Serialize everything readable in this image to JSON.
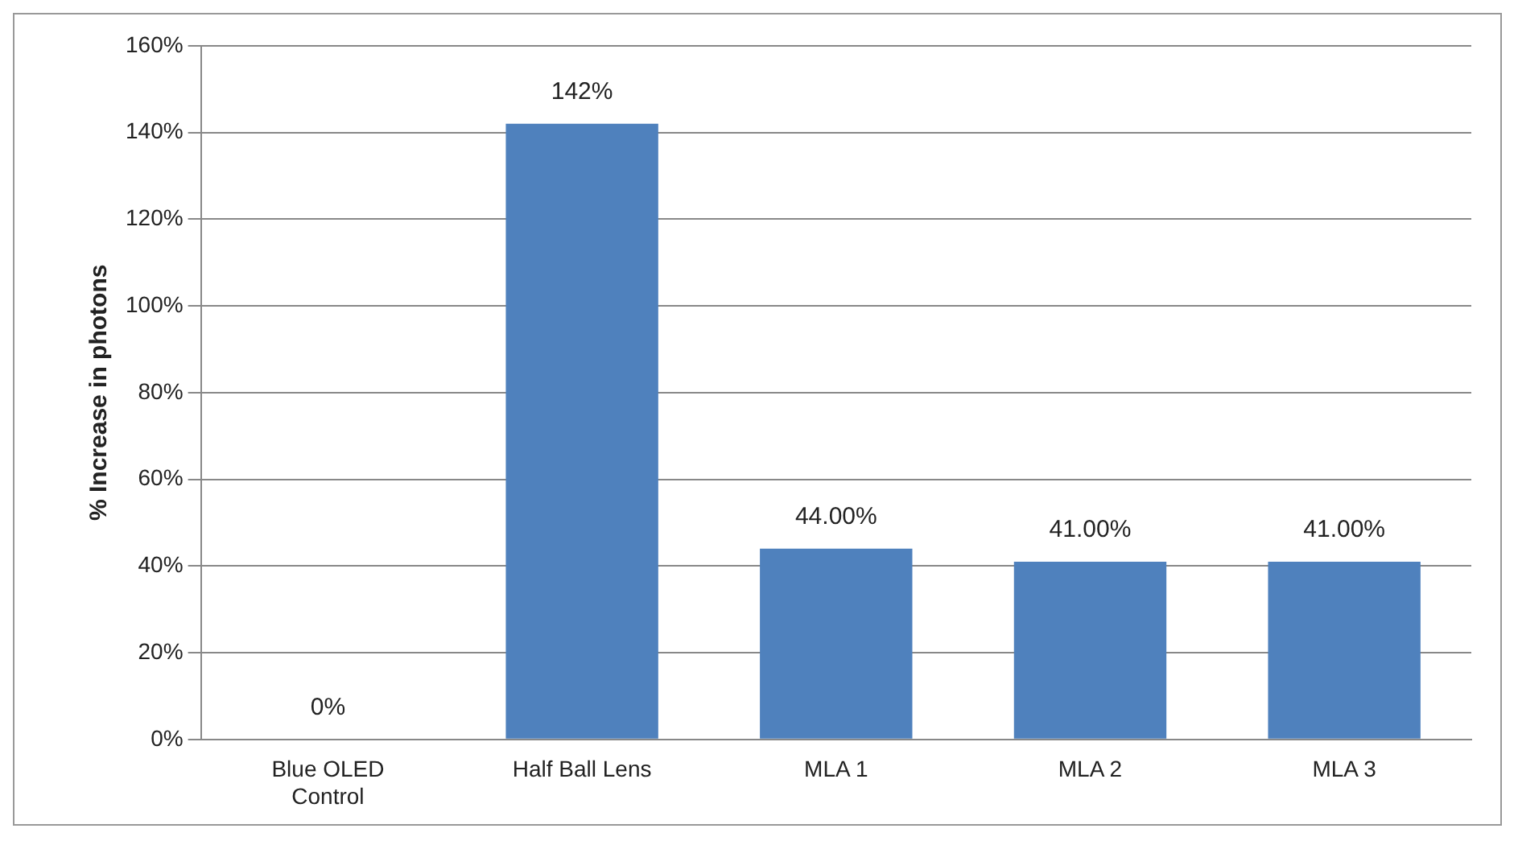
{
  "chart_data": {
    "type": "bar",
    "ylabel": "% Increase in photons",
    "categories": [
      "Blue OLED Control",
      "Half Ball Lens",
      "MLA 1",
      "MLA 2",
      "MLA 3"
    ],
    "values": [
      0,
      142,
      44,
      41,
      41
    ],
    "value_labels": [
      "0%",
      "142%",
      "44.00%",
      "41.00%",
      "41.00%"
    ],
    "color": "#4f81bd",
    "ylim": [
      0,
      160
    ],
    "yticks": [
      {
        "value": 0,
        "label": "0%"
      },
      {
        "value": 20,
        "label": "20%"
      },
      {
        "value": 40,
        "label": "40%"
      },
      {
        "value": 60,
        "label": "60%"
      },
      {
        "value": 80,
        "label": "80%"
      },
      {
        "value": 100,
        "label": "100%"
      },
      {
        "value": 120,
        "label": "120%"
      },
      {
        "value": 140,
        "label": "140%"
      },
      {
        "value": 160,
        "label": "160%"
      }
    ],
    "grid": "y",
    "legend": false
  }
}
